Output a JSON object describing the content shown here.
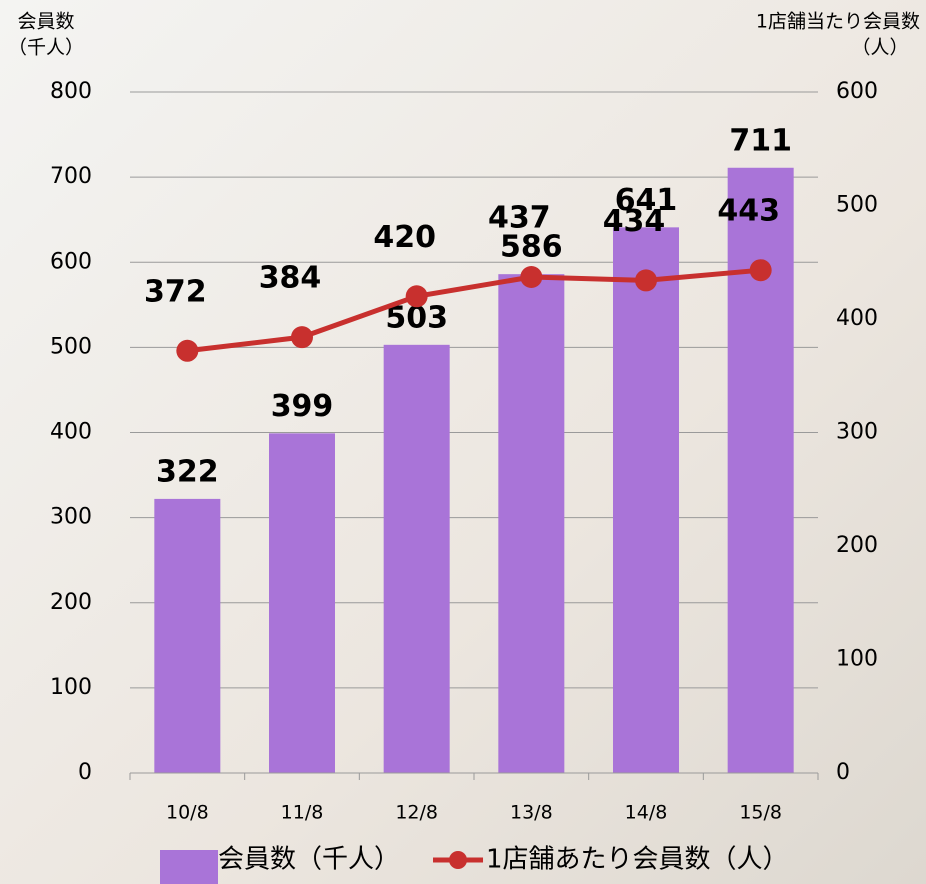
{
  "chart_data": {
    "type": "bar",
    "ylabel": [
      "会員数",
      "（千人）"
    ],
    "y2label": [
      "1店舗当たり会員数",
      "（人）"
    ],
    "categories": [
      "10/8",
      "11/8",
      "12/8",
      "13/8",
      "14/8",
      "15/8"
    ],
    "series": [
      {
        "name": "会員数（千人）",
        "type": "bar",
        "color": "#a974d8",
        "label_color": "#000000",
        "values": [
          322,
          399,
          503,
          586,
          641,
          711
        ]
      },
      {
        "name": "1店舗あたり会員数（人）",
        "type": "line",
        "axis": "y2",
        "color": "#c8302e",
        "label_color": "#c8302e",
        "values": [
          372,
          384,
          420,
          437,
          434,
          443
        ]
      }
    ],
    "ylim": [
      0,
      800
    ],
    "yticks": [
      0,
      100,
      200,
      300,
      400,
      500,
      600,
      700,
      800
    ],
    "y2lim": [
      0,
      600
    ],
    "y2ticks": [
      0,
      100,
      200,
      300,
      400,
      500,
      600
    ],
    "grid": true,
    "legend": "bottom"
  }
}
